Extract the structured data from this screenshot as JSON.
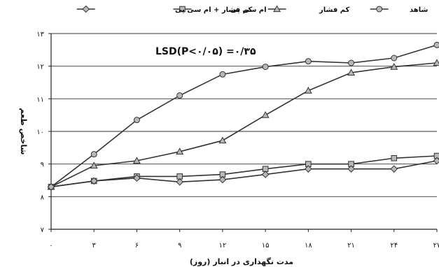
{
  "chart_data": {
    "type": "line",
    "title": "",
    "xlabel": "مدت نگهداری در انبار (روز)",
    "ylabel": "شاخص طعم",
    "annotation": "LSD(P<۰/۰۵) =۰/۳۵",
    "x": [
      0,
      3,
      6,
      9,
      12,
      15,
      18,
      21,
      24,
      27
    ],
    "x_tick_labels": [
      "۰",
      "۳",
      "۶",
      "۹",
      "۱۲",
      "۱۵",
      "۱۸",
      "۲۱",
      "۲۴",
      "۲۷"
    ],
    "ylim": [
      7,
      13
    ],
    "y_ticks": [
      7,
      8,
      9,
      10,
      11,
      12,
      13
    ],
    "y_tick_labels": [
      "۷",
      "۸",
      "۹",
      "۱۰",
      "۱۱",
      "۱۲",
      "۱۳"
    ],
    "grid": "horizontal",
    "legend_position": "top",
    "series": [
      {
        "name": "شاهد",
        "marker": "circle",
        "values": [
          8.3,
          9.3,
          10.35,
          11.1,
          11.75,
          11.98,
          12.15,
          12.1,
          12.25,
          12.65
        ]
      },
      {
        "name": "کم فشار",
        "marker": "triangle",
        "values": [
          8.3,
          8.95,
          9.1,
          9.38,
          9.72,
          10.5,
          11.25,
          11.8,
          11.98,
          12.1
        ]
      },
      {
        "name": "ام سی پی",
        "marker": "square",
        "values": [
          8.3,
          8.48,
          8.62,
          8.62,
          8.68,
          8.85,
          9.0,
          9.0,
          9.18,
          9.25
        ]
      },
      {
        "name": "کم فشار + ام سی پی",
        "marker": "diamond",
        "values": [
          8.3,
          8.48,
          8.57,
          8.45,
          8.52,
          8.68,
          8.85,
          8.85,
          8.85,
          9.1
        ]
      }
    ]
  }
}
